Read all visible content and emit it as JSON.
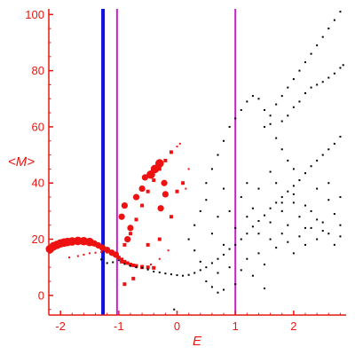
{
  "chart_data": {
    "type": "scatter",
    "xlabel": "E",
    "ylabel": "<M>",
    "xlim": [
      -2.2,
      2.9
    ],
    "ylim": [
      -7,
      102
    ],
    "x_ticks": [
      -2,
      -1,
      0,
      1,
      2
    ],
    "x_tick_labels": [
      "-2",
      "-1",
      "0",
      "1",
      "2"
    ],
    "y_ticks": [
      0,
      20,
      40,
      60,
      80,
      100
    ],
    "y_tick_labels": [
      "0",
      "20",
      "40",
      "60",
      "80",
      "100"
    ],
    "grid": false,
    "legend": "none",
    "colors": {
      "axis": "#e8160f",
      "red_points": "#ee1111",
      "black_points": "#000000",
      "blue_line": "#1010e6",
      "magenta_line": "#cc1fcc"
    },
    "vertical_lines": [
      {
        "x": -1.27,
        "color": "#1010e6",
        "style": "thick"
      },
      {
        "x": -1.03,
        "color": "#cc1fcc",
        "style": "medium"
      },
      {
        "x": 1.0,
        "color": "#cc1fcc",
        "style": "medium"
      }
    ],
    "series": [
      {
        "color": "#ee1111",
        "marker": "square",
        "points": [
          [
            -2.18,
            16.5,
            4
          ],
          [
            -2.12,
            17.5,
            4
          ],
          [
            -2.06,
            18.0,
            4
          ],
          [
            -2.0,
            18.5,
            4
          ],
          [
            -1.94,
            18.8,
            4
          ],
          [
            -1.88,
            19.0,
            4
          ],
          [
            -1.8,
            19.2,
            4
          ],
          [
            -1.7,
            19.4,
            4
          ],
          [
            -1.6,
            19.3,
            4
          ],
          [
            -1.5,
            19.0,
            4
          ],
          [
            -1.42,
            18.5,
            3
          ],
          [
            -1.35,
            17.8,
            3
          ],
          [
            -1.28,
            17.0,
            3
          ],
          [
            -1.2,
            16.2,
            3
          ],
          [
            -1.12,
            15.2,
            3
          ],
          [
            -1.05,
            14.5,
            3
          ],
          [
            -1.0,
            13.5,
            2
          ],
          [
            -0.95,
            12.8,
            2
          ],
          [
            -0.9,
            12.0,
            2
          ],
          [
            -0.85,
            11.5,
            2
          ],
          [
            -0.8,
            11.0,
            2
          ],
          [
            -0.75,
            10.7,
            2
          ],
          [
            -0.7,
            10.5,
            2
          ],
          [
            -0.6,
            10.2,
            2
          ],
          [
            -0.5,
            10.0,
            2
          ],
          [
            -0.4,
            9.8,
            2
          ],
          [
            -1.85,
            13.5,
            1
          ],
          [
            -1.7,
            14.0,
            1
          ],
          [
            -1.6,
            14.5,
            1
          ],
          [
            -1.5,
            15.0,
            1
          ],
          [
            -1.4,
            15.2,
            1
          ],
          [
            -1.3,
            15.5,
            1
          ],
          [
            -1.2,
            15.2,
            1
          ],
          [
            -1.1,
            14.8,
            1
          ],
          [
            -0.9,
            18.0,
            2
          ],
          [
            -0.8,
            22.0,
            2
          ],
          [
            -0.7,
            27.0,
            2
          ],
          [
            -0.6,
            32.0,
            2
          ],
          [
            -0.5,
            37.0,
            2
          ],
          [
            -0.4,
            41.0,
            2
          ],
          [
            -0.3,
            45.0,
            2
          ],
          [
            -0.2,
            48.0,
            2
          ],
          [
            -0.1,
            51.0,
            2
          ],
          [
            0.0,
            53.0,
            1
          ],
          [
            0.05,
            54.0,
            1
          ],
          [
            -0.95,
            28.0,
            3
          ],
          [
            -0.9,
            32.0,
            3
          ],
          [
            -0.85,
            20.0,
            3
          ],
          [
            -0.8,
            24.0,
            3
          ],
          [
            -0.7,
            35.0,
            3
          ],
          [
            -0.6,
            38.0,
            3
          ],
          [
            -0.55,
            42.0,
            3
          ],
          [
            -0.45,
            43.0,
            4
          ],
          [
            -0.38,
            45.0,
            4
          ],
          [
            -0.3,
            47.0,
            4
          ],
          [
            -0.28,
            31.0,
            3
          ],
          [
            -0.22,
            40.0,
            3
          ],
          [
            -0.2,
            36.0,
            3
          ],
          [
            -0.5,
            18.0,
            2
          ],
          [
            -0.3,
            20.0,
            2
          ],
          [
            -0.1,
            28.0,
            2
          ],
          [
            0.0,
            37.0,
            2
          ],
          [
            0.1,
            40.0,
            2
          ],
          [
            -0.95,
            12.0,
            2
          ],
          [
            -0.9,
            4.0,
            2
          ],
          [
            -0.75,
            6.0,
            2
          ],
          [
            -0.6,
            10.0,
            2
          ],
          [
            -0.45,
            11.0,
            1
          ],
          [
            -0.3,
            13.0,
            1
          ],
          [
            -0.15,
            16.0,
            1
          ],
          [
            0.15,
            38.0,
            1
          ],
          [
            0.2,
            45.0,
            1
          ]
        ]
      },
      {
        "color": "#000000",
        "marker": "dot",
        "points": [
          [
            -1.3,
            12.8
          ],
          [
            -1.2,
            11.5
          ],
          [
            -1.1,
            11.8
          ],
          [
            -1.0,
            12.5
          ],
          [
            -0.9,
            11.2
          ],
          [
            -0.8,
            10.5
          ],
          [
            -0.7,
            10.0
          ],
          [
            -0.6,
            9.8
          ],
          [
            -0.5,
            9.2
          ],
          [
            -0.4,
            8.5
          ],
          [
            -0.3,
            8.2
          ],
          [
            -0.2,
            7.8
          ],
          [
            -0.1,
            7.5
          ],
          [
            0.0,
            7.2
          ],
          [
            0.1,
            7.0
          ],
          [
            0.2,
            7.3
          ],
          [
            0.3,
            8.0
          ],
          [
            0.4,
            9.0
          ],
          [
            0.5,
            10.0
          ],
          [
            0.6,
            11.5
          ],
          [
            0.7,
            13.0
          ],
          [
            0.8,
            14.5
          ],
          [
            0.9,
            16.5
          ],
          [
            1.0,
            18.0
          ],
          [
            1.1,
            20.0
          ],
          [
            1.2,
            22.0
          ],
          [
            1.3,
            24.5
          ],
          [
            1.4,
            26.5
          ],
          [
            1.5,
            28.5
          ],
          [
            1.6,
            31.0
          ],
          [
            1.7,
            33.0
          ],
          [
            1.8,
            35.0
          ],
          [
            1.9,
            37.0
          ],
          [
            2.0,
            39.0
          ],
          [
            2.1,
            41.0
          ],
          [
            2.2,
            43.5
          ],
          [
            2.3,
            46.0
          ],
          [
            2.4,
            48.0
          ],
          [
            2.5,
            50.0
          ],
          [
            2.6,
            52.0
          ],
          [
            2.7,
            54.0
          ],
          [
            2.8,
            56.5
          ],
          [
            0.5,
            40.0
          ],
          [
            0.6,
            45.0
          ],
          [
            0.7,
            50.0
          ],
          [
            0.8,
            55.0
          ],
          [
            0.9,
            60.0
          ],
          [
            1.0,
            63.0
          ],
          [
            1.1,
            66.0
          ],
          [
            1.2,
            69.0
          ],
          [
            1.3,
            71.0
          ],
          [
            1.4,
            70.0
          ],
          [
            1.5,
            66.0
          ],
          [
            1.6,
            61.0
          ],
          [
            1.7,
            56.0
          ],
          [
            1.8,
            52.0
          ],
          [
            1.9,
            48.0
          ],
          [
            2.0,
            45.0
          ],
          [
            1.5,
            60.0
          ],
          [
            1.6,
            64.0
          ],
          [
            1.7,
            68.0
          ],
          [
            1.8,
            71.0
          ],
          [
            1.9,
            74.0
          ],
          [
            2.0,
            77.0
          ],
          [
            2.1,
            80.0
          ],
          [
            2.2,
            83.0
          ],
          [
            2.3,
            86.0
          ],
          [
            2.4,
            89.0
          ],
          [
            2.5,
            92.0
          ],
          [
            2.6,
            95.0
          ],
          [
            2.7,
            98.0
          ],
          [
            2.8,
            101.0
          ],
          [
            1.8,
            62.0
          ],
          [
            1.9,
            64.0
          ],
          [
            2.0,
            67.0
          ],
          [
            2.1,
            69.0
          ],
          [
            2.2,
            72.0
          ],
          [
            2.3,
            74.0
          ],
          [
            2.4,
            75.0
          ],
          [
            2.5,
            76.0
          ],
          [
            2.6,
            77.5
          ],
          [
            2.7,
            79.0
          ],
          [
            2.8,
            81.0
          ],
          [
            2.85,
            82.0
          ],
          [
            0.2,
            20.0
          ],
          [
            0.3,
            25.0
          ],
          [
            0.4,
            30.0
          ],
          [
            0.5,
            34.0
          ],
          [
            0.6,
            22.0
          ],
          [
            0.7,
            28.0
          ],
          [
            0.8,
            38.0
          ],
          [
            0.9,
            30.0
          ],
          [
            1.1,
            35.0
          ],
          [
            1.2,
            40.0
          ],
          [
            1.3,
            31.0
          ],
          [
            1.4,
            38.0
          ],
          [
            1.6,
            44.0
          ],
          [
            1.7,
            40.0
          ],
          [
            1.8,
            30.0
          ],
          [
            1.9,
            25.0
          ],
          [
            2.0,
            33.0
          ],
          [
            2.1,
            28.0
          ],
          [
            2.2,
            24.0
          ],
          [
            2.3,
            30.0
          ],
          [
            2.4,
            27.0
          ],
          [
            2.5,
            23.0
          ],
          [
            2.6,
            34.0
          ],
          [
            2.7,
            29.0
          ],
          [
            2.8,
            25.0
          ],
          [
            0.3,
            16.0
          ],
          [
            0.4,
            12.0
          ],
          [
            0.5,
            5.0
          ],
          [
            0.6,
            3.0
          ],
          [
            0.7,
            8.0
          ],
          [
            0.8,
            2.0
          ],
          [
            0.9,
            10.0
          ],
          [
            1.0,
            4.0
          ],
          [
            1.1,
            9.0
          ],
          [
            1.2,
            13.0
          ],
          [
            1.3,
            7.0
          ],
          [
            1.4,
            15.0
          ],
          [
            1.5,
            11.0
          ],
          [
            1.6,
            20.0
          ],
          [
            1.7,
            17.0
          ],
          [
            1.8,
            22.0
          ],
          [
            1.9,
            19.0
          ],
          [
            2.0,
            15.0
          ],
          [
            2.1,
            21.0
          ],
          [
            2.2,
            18.0
          ],
          [
            2.3,
            24.0
          ],
          [
            2.4,
            20.0
          ],
          [
            2.5,
            26.0
          ],
          [
            2.6,
            22.0
          ],
          [
            2.7,
            18.0
          ],
          [
            2.8,
            21.0
          ],
          [
            0.8,
            18.0
          ],
          [
            1.0,
            24.0
          ],
          [
            1.2,
            28.0
          ],
          [
            1.4,
            22.0
          ],
          [
            1.6,
            26.0
          ],
          [
            1.8,
            33.0
          ],
          [
            2.0,
            36.0
          ],
          [
            2.2,
            32.0
          ],
          [
            2.4,
            38.0
          ],
          [
            2.6,
            40.0
          ],
          [
            2.8,
            35.0
          ],
          [
            -0.05,
            -5.0
          ],
          [
            0.7,
            1.0
          ],
          [
            1.5,
            2.5
          ]
        ]
      }
    ]
  }
}
